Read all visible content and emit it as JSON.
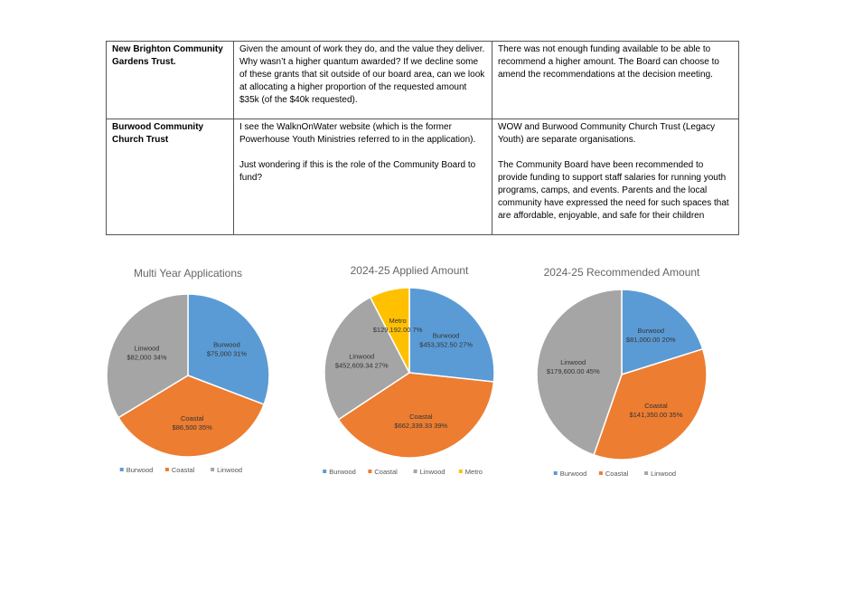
{
  "table": {
    "rows": [
      {
        "organisation": "New Brighton Community Gardens Trust.",
        "question": [
          "Given the amount of work they do, and the value they deliver. Why wasn’t a higher quantum awarded? If we decline some of these grants that sit outside of our board area, can we look at allocating a higher proportion of the requested amount $35k (of the $40k requested)."
        ],
        "response": [
          "There was not enough funding available to be able to recommend a higher amount. The Board can choose to amend the recommendations at the decision meeting."
        ]
      },
      {
        "organisation": "Burwood Community Church Trust",
        "question": [
          "I see the WalknOnWater website (which is the former Powerhouse Youth Ministries referred to in the application).",
          "Just wondering if this is the role of the Community Board to fund?"
        ],
        "response": [
          "WOW and Burwood Community Church Trust (Legacy Youth) are separate organisations.",
          "The Community Board have been recommended to provide funding to support staff salaries for running youth programs, camps, and events. Parents and the local community have expressed the need for such spaces that are affordable, enjoyable, and safe for their children"
        ]
      }
    ]
  },
  "chart_data": [
    {
      "type": "pie",
      "title": "Multi Year Applications",
      "slices": [
        {
          "name": "Burwood",
          "value": 75000,
          "label_value": "$75,000",
          "percent": "31%",
          "color": "#5B9BD5"
        },
        {
          "name": "Coastal",
          "value": 86500,
          "label_value": "$86,500",
          "percent": "35%",
          "color": "#ED7D31"
        },
        {
          "name": "Linwood",
          "value": 82000,
          "label_value": "$82,000",
          "percent": "34%",
          "color": "#A5A5A5"
        }
      ],
      "legend": [
        "Burwood",
        "Coastal",
        "Linwood"
      ],
      "legend_position": "bottom"
    },
    {
      "type": "pie",
      "title": "2024-25 Applied Amount",
      "slices": [
        {
          "name": "Burwood",
          "value": 453352.5,
          "label_value": "$453,352.50",
          "percent": "27%",
          "color": "#5B9BD5"
        },
        {
          "name": "Coastal",
          "value": 662339.33,
          "label_value": "$662,339.33",
          "percent": "39%",
          "color": "#ED7D31"
        },
        {
          "name": "Linwood",
          "value": 452609.34,
          "label_value": "$452,609.34",
          "percent": "27%",
          "color": "#A5A5A5"
        },
        {
          "name": "Metro",
          "value": 129192.0,
          "label_value": "$129,192.00",
          "percent": "7%",
          "color": "#FFC000"
        }
      ],
      "legend": [
        "Burwood",
        "Coastal",
        "Linwood",
        "Metro"
      ],
      "legend_position": "bottom"
    },
    {
      "type": "pie",
      "title": "2024-25 Recommended Amount",
      "slices": [
        {
          "name": "Burwood",
          "value": 81000,
          "label_value": "$81,000.00",
          "percent": "20%",
          "color": "#5B9BD5"
        },
        {
          "name": "Coastal",
          "value": 141350,
          "label_value": "$141,350.00",
          "percent": "35%",
          "color": "#ED7D31"
        },
        {
          "name": "Linwood",
          "value": 179600,
          "label_value": "$179,600.00",
          "percent": "45%",
          "color": "#A5A5A5"
        }
      ],
      "legend": [
        "Burwood",
        "Coastal",
        "Linwood"
      ],
      "legend_position": "bottom"
    }
  ]
}
